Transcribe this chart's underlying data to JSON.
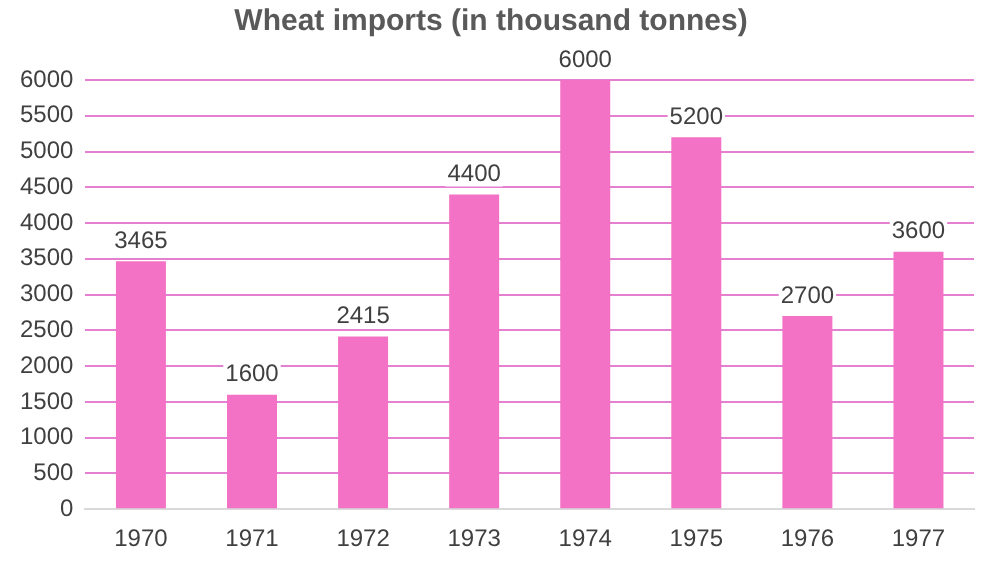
{
  "chart_data": {
    "type": "bar",
    "title": "Wheat imports (in thousand tonnes)",
    "categories": [
      "1970",
      "1971",
      "1972",
      "1973",
      "1974",
      "1975",
      "1976",
      "1977"
    ],
    "values": [
      3465,
      1600,
      2415,
      4400,
      6000,
      5200,
      2700,
      3600
    ],
    "color": "#f472c6",
    "ylim": [
      0,
      6000
    ],
    "yticks": [
      0,
      500,
      1000,
      1500,
      2000,
      2500,
      3000,
      3500,
      4000,
      4500,
      5000,
      5500,
      6000
    ],
    "grid": "y",
    "data_labels": true,
    "legend": false
  }
}
